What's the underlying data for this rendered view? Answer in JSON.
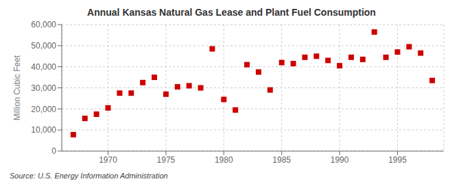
{
  "chart_data": {
    "type": "scatter",
    "title": "Annual Kansas Natural Gas Lease and Plant Fuel Consumption",
    "ylabel": "Million Cubic Feet",
    "annotations": [
      "Source: U.S. Energy Information Administration"
    ],
    "x": [
      1967,
      1968,
      1969,
      1970,
      1971,
      1972,
      1973,
      1974,
      1975,
      1976,
      1977,
      1978,
      1979,
      1980,
      1981,
      1982,
      1983,
      1984,
      1985,
      1986,
      1987,
      1988,
      1989,
      1990,
      1991,
      1992,
      1993,
      1994,
      1995,
      1996,
      1997,
      1998
    ],
    "values": [
      7800,
      15500,
      17500,
      20500,
      27500,
      27500,
      32500,
      35000,
      27000,
      30500,
      31000,
      30000,
      48500,
      24500,
      19500,
      41000,
      37500,
      29000,
      42000,
      41500,
      44500,
      45000,
      43000,
      40500,
      44500,
      43500,
      56500,
      44500,
      47000,
      49500,
      46500,
      33500
    ],
    "color": "#cc0000",
    "marker": "square",
    "xlim": [
      1966,
      1999
    ],
    "xticks": [
      1970,
      1975,
      1980,
      1985,
      1990,
      1995
    ],
    "ylim": [
      0,
      60000
    ],
    "yticks": [
      0,
      {
        "value": 10000,
        "label": "10,000"
      },
      {
        "value": 20000,
        "label": "20,000"
      },
      {
        "value": 30000,
        "label": "30,000"
      },
      {
        "value": 40000,
        "label": "40,000"
      },
      {
        "value": 50000,
        "label": "50,000"
      },
      {
        "value": 60000,
        "label": "60,000"
      }
    ],
    "grid": true
  }
}
